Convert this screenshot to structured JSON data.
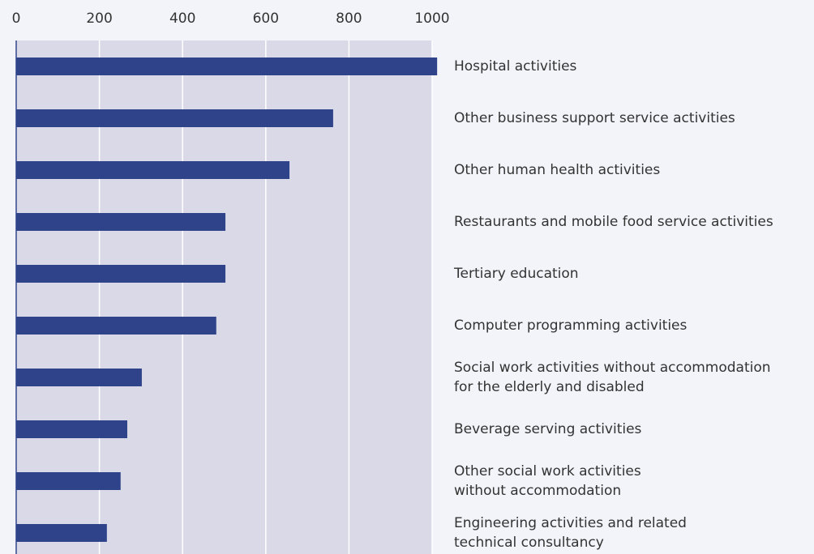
{
  "chart_data": {
    "type": "bar",
    "orientation": "horizontal",
    "categories": [
      "Hospital activities",
      "Other business support service activities",
      "Other human health activities",
      "Restaurants and mobile food service activities",
      "Tertiary education",
      "Computer programming activities",
      "Social work activities without accommodation\nfor the elderly and disabled",
      "Beverage serving activities",
      "Other social work activities\nwithout accommodation",
      "Engineering activities and related\ntechnical consultancy"
    ],
    "values": [
      1012,
      762,
      657,
      503,
      503,
      481,
      302,
      267,
      251,
      218
    ],
    "color": "#2e4389",
    "xlim": [
      0,
      1000
    ],
    "xticks": [
      0,
      200,
      400,
      600,
      800,
      1000
    ],
    "grid": true
  }
}
